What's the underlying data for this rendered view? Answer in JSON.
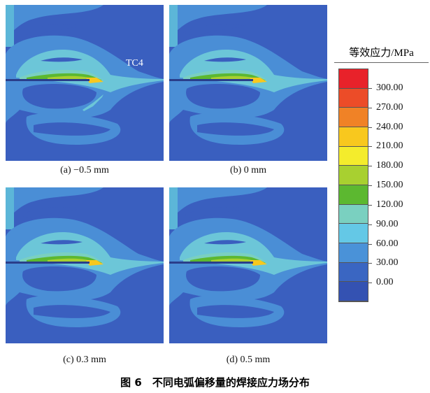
{
  "panels": [
    {
      "caption": "(a) −0.5 mm",
      "label": "TC4"
    },
    {
      "caption": "(b) 0 mm"
    },
    {
      "caption": "(c) 0.3 mm"
    },
    {
      "caption": "(d) 0.5 mm"
    }
  ],
  "colorbar": {
    "title": "等效应力/MPa",
    "colors": [
      "#e8222a",
      "#ec4c28",
      "#f08226",
      "#f8c81e",
      "#f4ec2c",
      "#a8d030",
      "#5cb830",
      "#7ad0c0",
      "#64c8e6",
      "#4a92d8",
      "#3a66c2",
      "#3452b2"
    ],
    "labels": [
      "300.00",
      "270.00",
      "240.00",
      "210.00",
      "180.00",
      "150.00",
      "120.00",
      "90.00",
      "60.00",
      "30.00",
      "0.00"
    ]
  },
  "figure_caption": "图 6　不同电弧偏移量的焊接应力场分布"
}
